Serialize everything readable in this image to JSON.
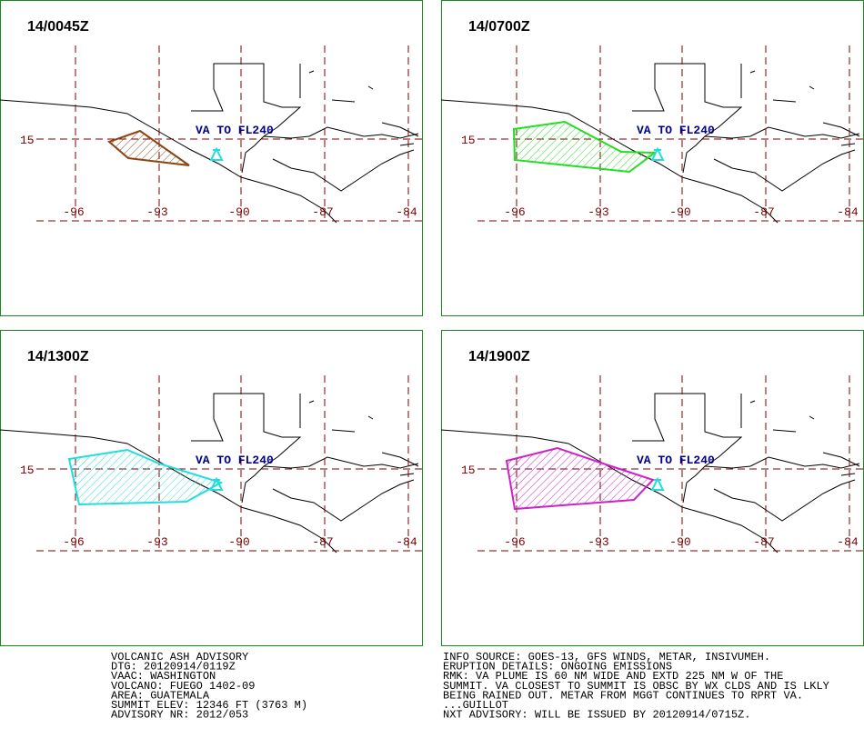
{
  "panels": [
    {
      "title": "14/0045Z",
      "color": "#8b4513"
    },
    {
      "title": "14/0700Z",
      "color": "#22dd22"
    },
    {
      "title": "14/1300Z",
      "color": "#22dddd"
    },
    {
      "title": "14/1900Z",
      "color": "#cc22cc"
    }
  ],
  "map_labels": {
    "lat": [
      "15"
    ],
    "lon": [
      "-96",
      "-93",
      "-90",
      "-87",
      "-84"
    ],
    "level": "VA TO FL240"
  },
  "advisory": {
    "left": [
      "VOLCANIC ASH ADVISORY",
      "DTG: 20120914/0119Z",
      "VAAC: WASHINGTON",
      "VOLCANO: FUEGO 1402-09",
      "AREA: GUATEMALA",
      "SUMMIT ELEV: 12346 FT (3763 M)",
      "ADVISORY NR: 2012/053"
    ],
    "right": [
      "INFO SOURCE: GOES-13, GFS WINDS, METAR, INSIVUMEH.",
      "ERUPTION DETAILS: ONGOING EMISSIONS",
      "RMK: VA PLUME IS 60 NM WIDE AND EXTD 225 NM W OF THE",
      "SUMMIT. VA CLOSEST TO SUMMIT IS OBSC BY WX CLDS AND IS LKLY",
      "BEING RAINED OUT. METAR FROM MGGT CONTINUES TO RPRT VA.",
      "...GUILLOT",
      "NXT ADVISORY: WILL BE ISSUED BY 20120914/0715Z."
    ]
  }
}
